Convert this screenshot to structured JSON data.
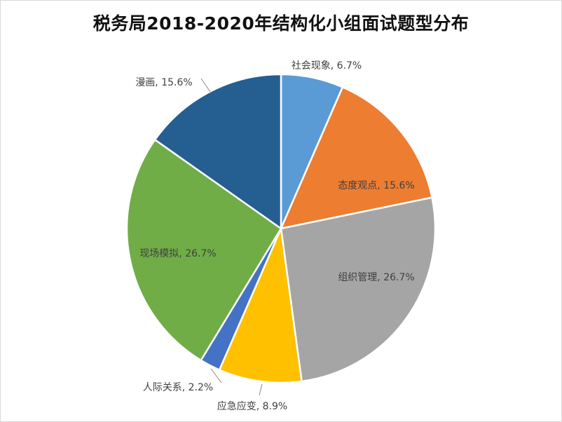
{
  "chart_data": {
    "type": "pie",
    "title": "税务局2018-2020年结构化小组面试题型分布",
    "unit": "%",
    "slices": [
      {
        "label": "社会现象",
        "value": 6.7,
        "display": "社会现象, 6.7%",
        "color": "#5b9bd5"
      },
      {
        "label": "态度观点",
        "value": 15.6,
        "display": "态度观点, 15.6%",
        "color": "#ed7d31"
      },
      {
        "label": "组织管理",
        "value": 26.7,
        "display": "组织管理, 26.7%",
        "color": "#a5a5a5"
      },
      {
        "label": "应急应变",
        "value": 8.9,
        "display": "应急应变, 8.9%",
        "color": "#ffc000"
      },
      {
        "label": "人际关系",
        "value": 2.2,
        "display": "人际关系, 2.2%",
        "color": "#4472c4"
      },
      {
        "label": "现场模拟",
        "value": 26.7,
        "display": "现场模拟, 26.7%",
        "color": "#70ad47"
      },
      {
        "label": "漫画",
        "value": 15.6,
        "display": "漫画, 15.6%",
        "color": "#255e91"
      }
    ],
    "start_angle": "12 o'clock",
    "direction": "clockwise",
    "legend": "none"
  }
}
